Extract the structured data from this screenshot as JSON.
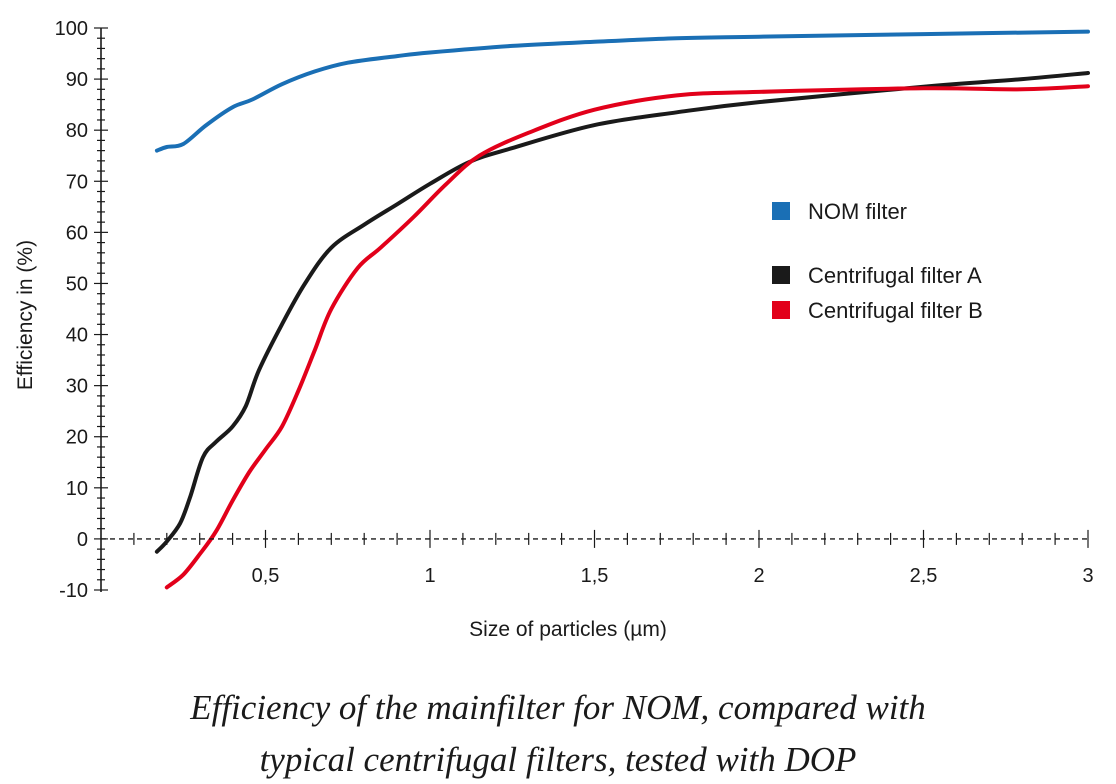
{
  "chart_data": {
    "type": "line",
    "xlabel": "Size of particles (µm)",
    "ylabel": "Efficiency in (%)",
    "xlim": [
      0,
      3
    ],
    "ylim": [
      -10,
      100
    ],
    "x_ticks": [
      {
        "value": 0.5,
        "label": "0,5"
      },
      {
        "value": 1,
        "label": "1"
      },
      {
        "value": 1.5,
        "label": "1,5"
      },
      {
        "value": 2,
        "label": "2"
      },
      {
        "value": 2.5,
        "label": "2,5"
      },
      {
        "value": 3,
        "label": "3"
      }
    ],
    "y_ticks": [
      {
        "value": 100,
        "label": "100"
      },
      {
        "value": 90,
        "label": "90"
      },
      {
        "value": 80,
        "label": "80"
      },
      {
        "value": 70,
        "label": "70"
      },
      {
        "value": 60,
        "label": "60"
      },
      {
        "value": 50,
        "label": "50"
      },
      {
        "value": 40,
        "label": "40"
      },
      {
        "value": 30,
        "label": "30"
      },
      {
        "value": 20,
        "label": "20"
      },
      {
        "value": 10,
        "label": "10"
      },
      {
        "value": 0,
        "label": "0"
      },
      {
        "value": -10,
        "label": "-10"
      }
    ],
    "grid": false,
    "legend_position": "right",
    "series": [
      {
        "name": "NOM filter",
        "color": "#1a6fb5",
        "points": [
          [
            0.17,
            76
          ],
          [
            0.2,
            76.7
          ],
          [
            0.25,
            77.3
          ],
          [
            0.32,
            81
          ],
          [
            0.4,
            84.5
          ],
          [
            0.46,
            86
          ],
          [
            0.55,
            89
          ],
          [
            0.65,
            91.5
          ],
          [
            0.75,
            93.2
          ],
          [
            0.9,
            94.5
          ],
          [
            1.0,
            95.2
          ],
          [
            1.25,
            96.5
          ],
          [
            1.5,
            97.3
          ],
          [
            1.75,
            98
          ],
          [
            2.0,
            98.3
          ],
          [
            2.5,
            98.8
          ],
          [
            3.0,
            99.3
          ]
        ]
      },
      {
        "name": "Centrifugal filter A",
        "color": "#1a1a1a",
        "points": [
          [
            0.17,
            -2.5
          ],
          [
            0.2,
            -0.5
          ],
          [
            0.24,
            3
          ],
          [
            0.27,
            8
          ],
          [
            0.31,
            16
          ],
          [
            0.35,
            19
          ],
          [
            0.4,
            22
          ],
          [
            0.44,
            26
          ],
          [
            0.48,
            33
          ],
          [
            0.55,
            42
          ],
          [
            0.62,
            50
          ],
          [
            0.7,
            57
          ],
          [
            0.8,
            61.5
          ],
          [
            0.9,
            65.5
          ],
          [
            1.0,
            69.5
          ],
          [
            1.12,
            73.8
          ],
          [
            1.25,
            76.5
          ],
          [
            1.5,
            81
          ],
          [
            1.75,
            83.5
          ],
          [
            2.0,
            85.5
          ],
          [
            2.5,
            88.5
          ],
          [
            2.8,
            90
          ],
          [
            3.0,
            91.2
          ]
        ]
      },
      {
        "name": "Centrifugal filter B",
        "color": "#e2001a",
        "points": [
          [
            0.2,
            -9.5
          ],
          [
            0.25,
            -7
          ],
          [
            0.3,
            -3
          ],
          [
            0.35,
            1.5
          ],
          [
            0.4,
            7.5
          ],
          [
            0.45,
            13
          ],
          [
            0.5,
            17.5
          ],
          [
            0.55,
            22
          ],
          [
            0.6,
            29
          ],
          [
            0.65,
            37
          ],
          [
            0.7,
            45
          ],
          [
            0.78,
            53
          ],
          [
            0.85,
            57
          ],
          [
            0.95,
            63
          ],
          [
            1.05,
            69.5
          ],
          [
            1.15,
            75
          ],
          [
            1.3,
            79.5
          ],
          [
            1.5,
            84
          ],
          [
            1.75,
            86.8
          ],
          [
            2.0,
            87.5
          ],
          [
            2.5,
            88.2
          ],
          [
            2.8,
            88
          ],
          [
            3.0,
            88.6
          ]
        ]
      }
    ]
  },
  "caption": {
    "line1": "Efficiency of the mainfilter for NOM, compared with",
    "line2": "typical centrifugal filters, tested with DOP"
  }
}
